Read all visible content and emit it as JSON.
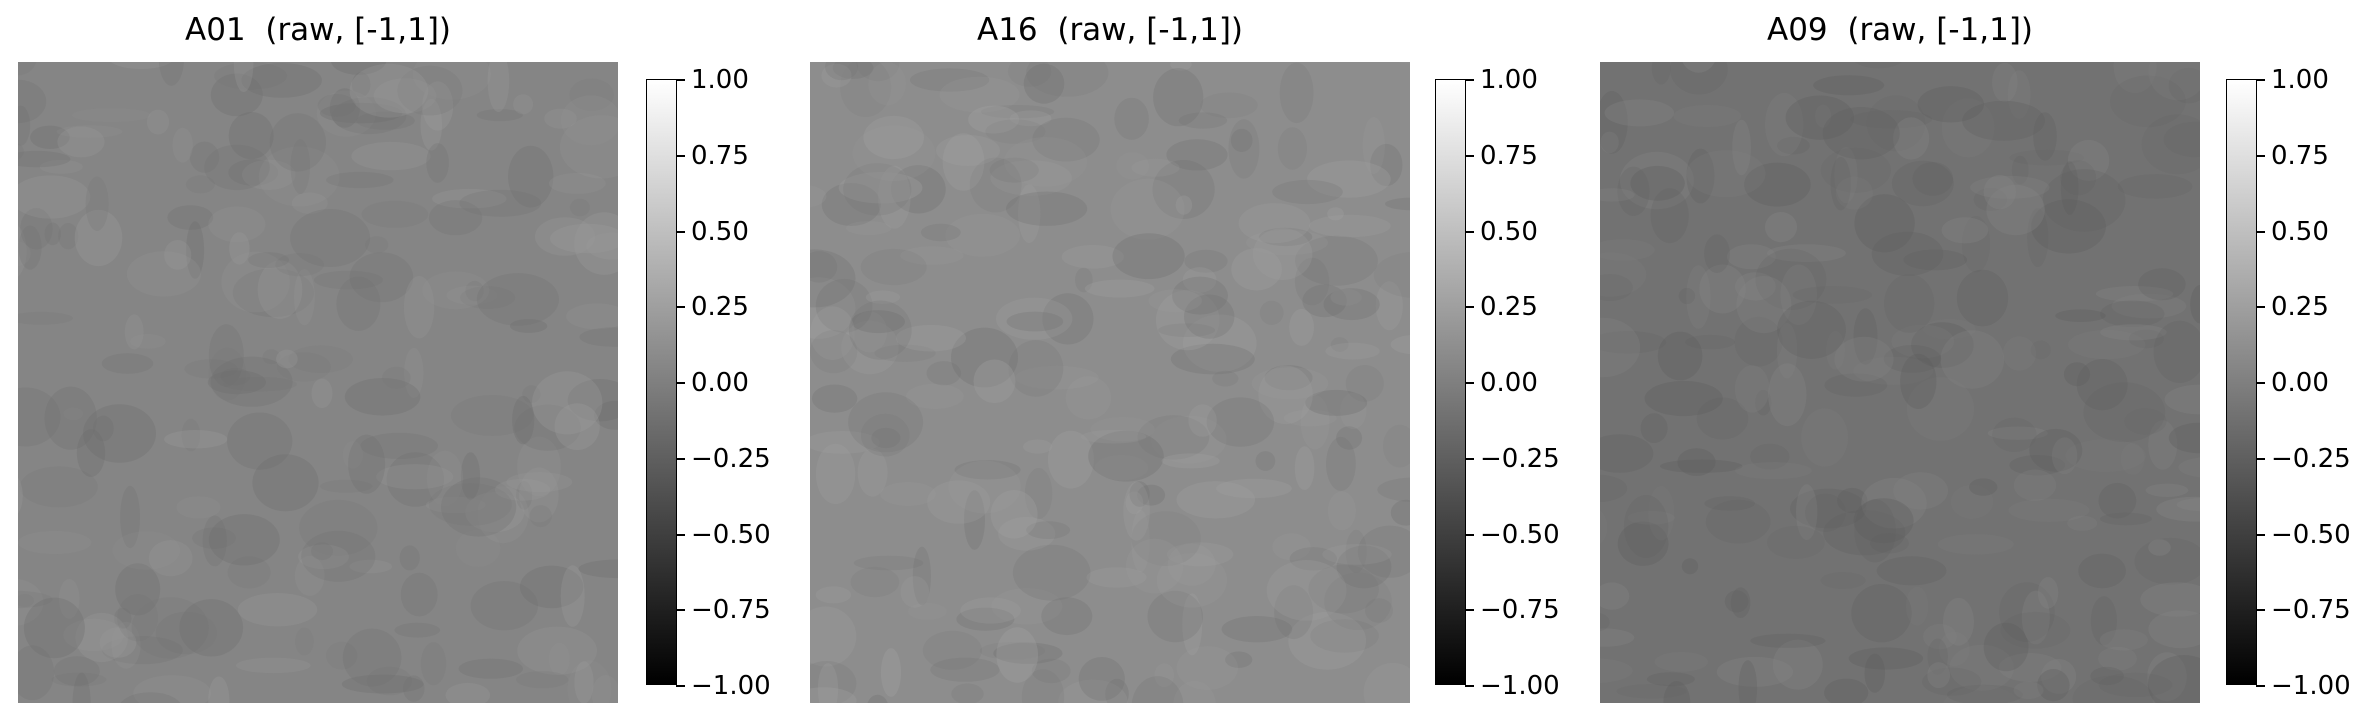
{
  "figure": {
    "panels": [
      {
        "title": "A01  (raw, [-1,1])",
        "base_gray": "#858585",
        "dark_gray": "#6e6e6e",
        "light_gray": "#9a9a9a",
        "mean_value": 0.05
      },
      {
        "title": "A16  (raw, [-1,1])",
        "base_gray": "#8d8d8d",
        "dark_gray": "#6f6f6f",
        "light_gray": "#a2a2a2",
        "mean_value": 0.1
      },
      {
        "title": "A09  (raw, [-1,1])",
        "base_gray": "#727272",
        "dark_gray": "#5e5e5e",
        "light_gray": "#878787",
        "mean_value": -0.1
      }
    ],
    "colorbar": {
      "colormap": "gray",
      "ticks": [
        "1.00",
        "0.75",
        "0.50",
        "0.25",
        "0.00",
        "−0.25",
        "−0.50",
        "−0.75",
        "−1.00"
      ]
    }
  },
  "chart_data": {
    "type": "heatmap",
    "colormap": "gray",
    "value_range": [
      -1,
      1
    ],
    "panels": [
      {
        "title": "A01  (raw, [-1,1])",
        "approx_mean": 0.05
      },
      {
        "title": "A16  (raw, [-1,1])",
        "approx_mean": 0.1
      },
      {
        "title": "A09  (raw, [-1,1])",
        "approx_mean": -0.1
      }
    ],
    "colorbar_ticks": [
      1.0,
      0.75,
      0.5,
      0.25,
      0.0,
      -0.25,
      -0.5,
      -0.75,
      -1.0
    ]
  }
}
